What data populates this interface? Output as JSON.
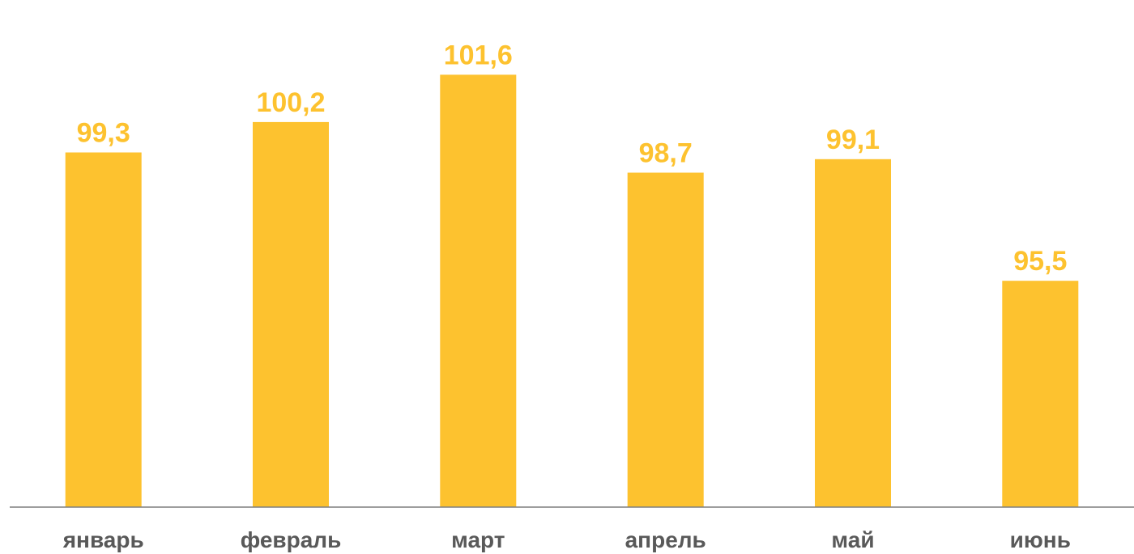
{
  "chart_data": {
    "type": "bar",
    "title": "",
    "xlabel": "",
    "ylabel": "",
    "categories": [
      "январь",
      "февраль",
      "март",
      "апрель",
      "май",
      "июнь"
    ],
    "values": [
      99.3,
      100.2,
      101.6,
      98.7,
      99.1,
      95.5
    ],
    "value_labels": [
      "99,3",
      "100,2",
      "101,6",
      "98,7",
      "99,1",
      "95,5"
    ],
    "ylim": [
      88.8,
      102.4
    ],
    "grid": false,
    "legend": "none",
    "colors": {
      "bar": "#fdc22f",
      "value_label": "#fdc22f",
      "category_label": "#595959",
      "axis": "#7f7f7f"
    }
  }
}
